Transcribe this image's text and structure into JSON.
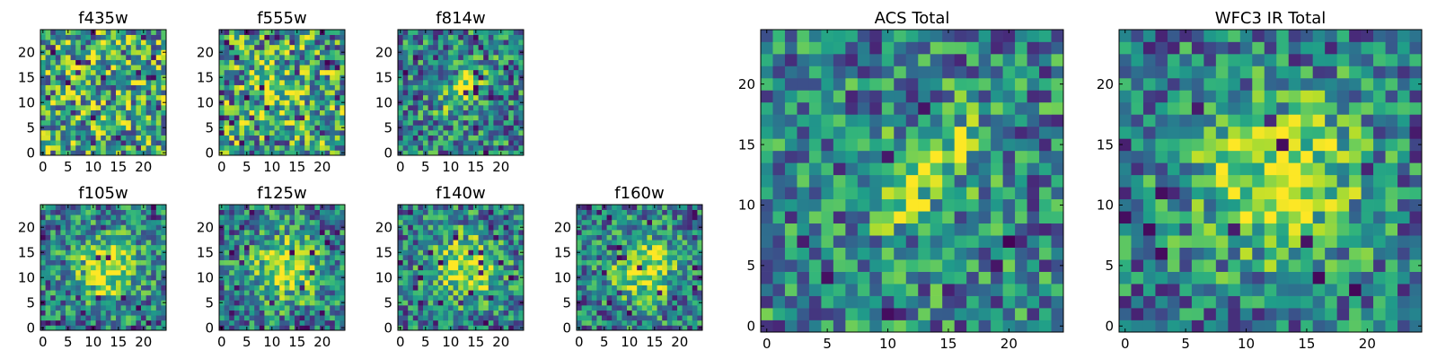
{
  "figure": {
    "colormap": "viridis",
    "colors": {
      "frame": "#000000",
      "background": "#ffffff"
    }
  },
  "chart_data": [
    {
      "id": "f435w",
      "type": "heatmap",
      "title": "f435w",
      "grid": false,
      "shape": [
        25,
        25
      ],
      "xticks": [
        "0",
        "5",
        "10",
        "15",
        "20"
      ],
      "yticks": [
        "0",
        "5",
        "10",
        "15",
        "20"
      ],
      "xlim": [
        -0.5,
        24.5
      ],
      "ylim": [
        -0.5,
        24.5
      ],
      "pattern": "noise"
    },
    {
      "id": "f555w",
      "type": "heatmap",
      "title": "f555w",
      "grid": false,
      "shape": [
        25,
        25
      ],
      "xticks": [
        "0",
        "5",
        "10",
        "15",
        "20"
      ],
      "yticks": [
        "0",
        "5",
        "10",
        "15",
        "20"
      ],
      "xlim": [
        -0.5,
        24.5
      ],
      "ylim": [
        -0.5,
        24.5
      ],
      "pattern": "noise-faint-center"
    },
    {
      "id": "f814w",
      "type": "heatmap",
      "title": "f814w",
      "grid": false,
      "shape": [
        25,
        25
      ],
      "xticks": [
        "0",
        "5",
        "10",
        "15",
        "20"
      ],
      "yticks": [
        "0",
        "5",
        "10",
        "15",
        "20"
      ],
      "xlim": [
        -0.5,
        24.5
      ],
      "ylim": [
        -0.5,
        24.5
      ],
      "pattern": "diagonal-source"
    },
    {
      "id": "f105w",
      "type": "heatmap",
      "title": "f105w",
      "grid": false,
      "shape": [
        25,
        25
      ],
      "xticks": [
        "0",
        "5",
        "10",
        "15",
        "20"
      ],
      "yticks": [
        "0",
        "5",
        "10",
        "15",
        "20"
      ],
      "xlim": [
        -0.5,
        24.5
      ],
      "ylim": [
        -0.5,
        24.5
      ],
      "pattern": "central-blob"
    },
    {
      "id": "f125w",
      "type": "heatmap",
      "title": "f125w",
      "grid": false,
      "shape": [
        25,
        25
      ],
      "xticks": [
        "0",
        "5",
        "10",
        "15",
        "20"
      ],
      "yticks": [
        "0",
        "5",
        "10",
        "15",
        "20"
      ],
      "xlim": [
        -0.5,
        24.5
      ],
      "ylim": [
        -0.5,
        24.5
      ],
      "pattern": "central-blob"
    },
    {
      "id": "f140w",
      "type": "heatmap",
      "title": "f140w",
      "grid": false,
      "shape": [
        25,
        25
      ],
      "xticks": [
        "0",
        "5",
        "10",
        "15",
        "20"
      ],
      "yticks": [
        "0",
        "5",
        "10",
        "15",
        "20"
      ],
      "xlim": [
        -0.5,
        24.5
      ],
      "ylim": [
        -0.5,
        24.5
      ],
      "pattern": "central-blob"
    },
    {
      "id": "f160w",
      "type": "heatmap",
      "title": "f160w",
      "grid": false,
      "shape": [
        25,
        25
      ],
      "xticks": [
        "0",
        "5",
        "10",
        "15",
        "20"
      ],
      "yticks": [
        "0",
        "5",
        "10",
        "15",
        "20"
      ],
      "xlim": [
        -0.5,
        24.5
      ],
      "ylim": [
        -0.5,
        24.5
      ],
      "pattern": "central-blob"
    },
    {
      "id": "acs_total",
      "type": "heatmap",
      "title": "ACS Total",
      "grid": false,
      "shape": [
        25,
        25
      ],
      "xticks": [
        "0",
        "5",
        "10",
        "15",
        "20"
      ],
      "yticks": [
        "0",
        "5",
        "10",
        "15",
        "20"
      ],
      "xlim": [
        -0.5,
        24.5
      ],
      "ylim": [
        -0.5,
        24.5
      ],
      "pattern": "diagonal-source"
    },
    {
      "id": "wfc3_ir_total",
      "type": "heatmap",
      "title": "WFC3 IR Total",
      "grid": false,
      "shape": [
        25,
        25
      ],
      "xticks": [
        "0",
        "5",
        "10",
        "15",
        "20"
      ],
      "yticks": [
        "0",
        "5",
        "10",
        "15",
        "20"
      ],
      "xlim": [
        -0.5,
        24.5
      ],
      "ylim": [
        -0.5,
        24.5
      ],
      "pattern": "central-blob"
    }
  ]
}
